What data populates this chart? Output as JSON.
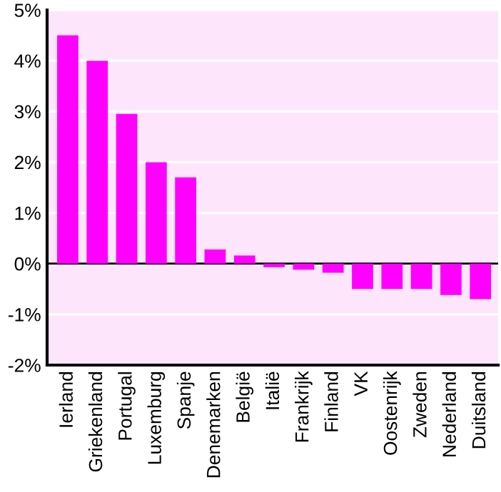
{
  "chart_data": {
    "type": "bar",
    "categories": [
      "Ierland",
      "Griekenland",
      "Portugal",
      "Luxemburg",
      "Spanje",
      "Denemarken",
      "België",
      "Italië",
      "Frankrijk",
      "Finland",
      "VK",
      "Oostenrijk",
      "Zweden",
      "Nederland",
      "Duitsland"
    ],
    "values": [
      4.5,
      4.0,
      2.95,
      2.0,
      1.7,
      0.28,
      0.16,
      -0.07,
      -0.12,
      -0.18,
      -0.5,
      -0.5,
      -0.5,
      -0.62,
      -0.7
    ],
    "color": "#ff00ff",
    "ylim": [
      -2,
      5
    ],
    "yticks": [
      {
        "value": -2,
        "label": "-2%"
      },
      {
        "value": -1,
        "label": "-1%"
      },
      {
        "value": 0,
        "label": "0%"
      },
      {
        "value": 1,
        "label": "1%"
      },
      {
        "value": 2,
        "label": "2%"
      },
      {
        "value": 3,
        "label": "3%"
      },
      {
        "value": 4,
        "label": "4%"
      },
      {
        "value": 5,
        "label": "5%"
      }
    ],
    "grid": "y",
    "ref_lines": [
      {
        "axis": "y",
        "value": 0,
        "color": "#000000"
      }
    ]
  }
}
